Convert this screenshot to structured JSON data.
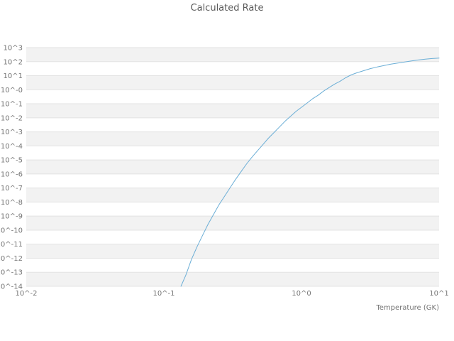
{
  "colors": {
    "background": "#ffffff",
    "line": "#6baed6",
    "band": "#f2f2f2",
    "gridline": "#e3e3e3",
    "tick_text": "#757575",
    "title_text": "#595959"
  },
  "chart_data": {
    "type": "line",
    "title": "Calculated Rate",
    "xlabel": "Temperature (GK)",
    "ylabel": "",
    "x_scale": "log10",
    "y_scale": "log10",
    "xlim_log10": [
      -2,
      1
    ],
    "ylim_log10": [
      -14,
      3
    ],
    "grid": "horizontal-only",
    "legend": "none",
    "x_ticks_log10": [
      -2,
      -1,
      0,
      1
    ],
    "x_tick_labels": [
      "10^-2",
      "10^-1",
      "10^0",
      "10^1"
    ],
    "y_ticks_log10": [
      3,
      2,
      1,
      0,
      -1,
      -2,
      -3,
      -4,
      -5,
      -6,
      -7,
      -8,
      -9,
      -10,
      -11,
      -12,
      -13,
      -14
    ],
    "y_tick_labels": [
      "10^3",
      "10^2",
      "10^1",
      "10^-0",
      "10^-1",
      "10^-2",
      "10^-3",
      "10^-4",
      "10^-5",
      "10^-6",
      "10^-7",
      "10^-8",
      "10^-9",
      "10^-10",
      "10^-11",
      "10^-12",
      "10^-13",
      "10^-14"
    ],
    "series": [
      {
        "name": "calculated-rate",
        "points_log10_note": "pairs of [log10(Temperature GK), log10(rate)] read from the plotted curve",
        "points_log10": [
          [
            -0.876,
            -14.0
          ],
          [
            -0.84,
            -13.2
          ],
          [
            -0.8,
            -12.1
          ],
          [
            -0.76,
            -11.2
          ],
          [
            -0.72,
            -10.4
          ],
          [
            -0.68,
            -9.6
          ],
          [
            -0.64,
            -8.9
          ],
          [
            -0.6,
            -8.2
          ],
          [
            -0.56,
            -7.6
          ],
          [
            -0.52,
            -7.0
          ],
          [
            -0.48,
            -6.4
          ],
          [
            -0.44,
            -5.85
          ],
          [
            -0.4,
            -5.3
          ],
          [
            -0.36,
            -4.8
          ],
          [
            -0.32,
            -4.35
          ],
          [
            -0.28,
            -3.9
          ],
          [
            -0.24,
            -3.45
          ],
          [
            -0.2,
            -3.05
          ],
          [
            -0.16,
            -2.65
          ],
          [
            -0.12,
            -2.25
          ],
          [
            -0.08,
            -1.9
          ],
          [
            -0.04,
            -1.55
          ],
          [
            0.0,
            -1.25
          ],
          [
            0.04,
            -0.95
          ],
          [
            0.08,
            -0.65
          ],
          [
            0.12,
            -0.4
          ],
          [
            0.16,
            -0.1
          ],
          [
            0.2,
            0.15
          ],
          [
            0.24,
            0.4
          ],
          [
            0.28,
            0.6
          ],
          [
            0.32,
            0.85
          ],
          [
            0.36,
            1.05
          ],
          [
            0.4,
            1.2
          ],
          [
            0.45,
            1.35
          ],
          [
            0.5,
            1.5
          ],
          [
            0.55,
            1.62
          ],
          [
            0.6,
            1.72
          ],
          [
            0.65,
            1.82
          ],
          [
            0.7,
            1.9
          ],
          [
            0.75,
            1.98
          ],
          [
            0.8,
            2.05
          ],
          [
            0.85,
            2.12
          ],
          [
            0.9,
            2.18
          ],
          [
            0.95,
            2.22
          ],
          [
            1.0,
            2.25
          ]
        ]
      }
    ]
  }
}
